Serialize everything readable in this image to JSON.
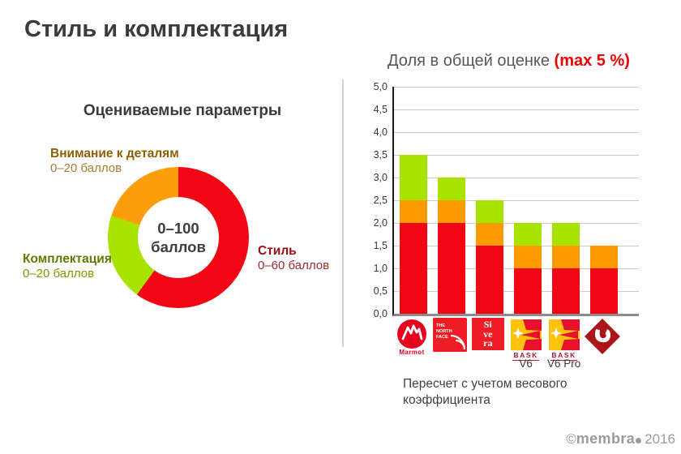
{
  "page": {
    "title": "Стиль и комплектация",
    "footer": {
      "copyright": "©",
      "brand": "membra",
      "year": "2016"
    }
  },
  "donut": {
    "heading": "Оцениваемые параметры",
    "center": {
      "line1": "0–100",
      "line2": "баллов"
    },
    "segments": [
      {
        "key": "style",
        "name": "Стиль",
        "points": "0–60 баллов",
        "value": 60,
        "color": "#F20613"
      },
      {
        "key": "kit",
        "name": "Комплектация",
        "points": "0–20 баллов",
        "value": 20,
        "color": "#A9E300"
      },
      {
        "key": "details",
        "name": "Внимание к деталям",
        "points": "0–20 баллов",
        "value": 20,
        "color": "#FB9E0C"
      }
    ]
  },
  "chart_data": {
    "type": "stacked-bar",
    "title": "Доля в общей оценке",
    "title_highlight": "(max 5 %)",
    "ylim": [
      0,
      5
    ],
    "ytick_step": 0.5,
    "ytick_labels": [
      "0,0",
      "0,5",
      "1,0",
      "1,5",
      "2,0",
      "2,5",
      "3,0",
      "3,5",
      "4,0",
      "4,5",
      "5,0"
    ],
    "grid": true,
    "categories": [
      "Marmot",
      "The North Face",
      "Sivera",
      "BASK V6",
      "BASK V6 Pro",
      "Red Fox"
    ],
    "variant_labels": [
      "",
      "",
      "",
      "V6",
      "V6 Pro",
      ""
    ],
    "logos": [
      "marmot",
      "tnf",
      "sivera",
      "bask",
      "bask",
      "redfox"
    ],
    "logo_words": {
      "marmot": "Marmot",
      "tnf": [
        "THE",
        "NORTH",
        "FACE"
      ],
      "sivera": [
        "Si",
        "ve",
        "ra"
      ],
      "bask": "BASK"
    },
    "series": [
      {
        "key": "style",
        "name": "Стиль",
        "color": "#F20613",
        "values": [
          2.0,
          2.0,
          1.5,
          1.0,
          1.0,
          1.0
        ]
      },
      {
        "key": "details",
        "name": "Внимание к деталям",
        "color": "#FC9B00",
        "values": [
          0.5,
          0.5,
          0.5,
          0.5,
          0.5,
          0.5
        ]
      },
      {
        "key": "kit",
        "name": "Комплектация",
        "color": "#A9E300",
        "values": [
          1.0,
          0.5,
          0.5,
          0.5,
          0.5,
          0.0
        ]
      }
    ],
    "totals": [
      3.5,
      3.0,
      2.5,
      2.0,
      2.0,
      1.5
    ],
    "caption": "Пересчет с учетом весового коэффициента"
  }
}
